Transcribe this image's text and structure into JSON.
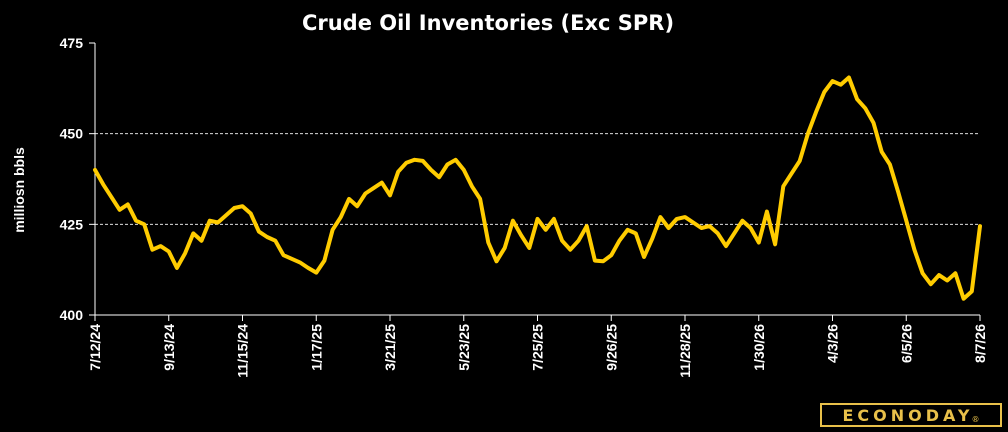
{
  "brand": {
    "name": "ECONODAY",
    "mark": "®"
  },
  "colors": {
    "line": "#ffcc00",
    "background": "#000000",
    "grid": "#ffffff",
    "axis": "#ffffff",
    "brand": "#e8c04a"
  },
  "chart_data": {
    "type": "line",
    "title": "Crude Oil Inventories (Exc SPR)",
    "ylabel": "milliosn bbls",
    "xlabel": "",
    "ylim": [
      400,
      475
    ],
    "yticks": [
      400,
      425,
      450,
      475
    ],
    "grid_y": [
      425,
      450
    ],
    "xlim": [
      "7/12/24",
      "8/7/26"
    ],
    "xticks": [
      "7/12/24",
      "9/13/24",
      "11/15/24",
      "1/17/25",
      "3/21/25",
      "5/23/25",
      "7/25/25",
      "9/26/25",
      "11/28/25",
      "1/30/26",
      "4/3/26",
      "6/5/26",
      "8/7/26"
    ],
    "series": [
      {
        "name": "",
        "x": [
          "7/12/24",
          "7/19/24",
          "7/26/24",
          "8/2/24",
          "8/9/24",
          "8/16/24",
          "8/23/24",
          "8/30/24",
          "9/6/24",
          "9/13/24",
          "9/20/24",
          "9/27/24",
          "10/4/24",
          "10/11/24",
          "10/18/24",
          "10/25/24",
          "11/1/24",
          "11/8/24",
          "11/15/24",
          "11/22/24",
          "11/29/24",
          "12/6/24",
          "12/13/24",
          "12/20/24",
          "12/27/24",
          "1/3/25",
          "1/10/25",
          "1/17/25",
          "1/24/25",
          "1/31/25",
          "2/7/25",
          "2/14/25",
          "2/21/25",
          "2/28/25",
          "3/7/25",
          "3/14/25",
          "3/21/25",
          "3/28/25",
          "4/4/25",
          "4/11/25",
          "4/18/25",
          "4/25/25",
          "5/2/25",
          "5/9/25",
          "5/16/25",
          "5/23/25",
          "5/30/25",
          "6/6/25",
          "6/13/25",
          "6/20/25",
          "6/27/25",
          "7/4/25",
          "7/11/25",
          "7/18/25",
          "7/25/25",
          "8/1/25",
          "8/8/25",
          "8/15/25",
          "8/22/25",
          "8/29/25",
          "9/5/25",
          "9/12/25",
          "9/19/25",
          "9/26/25",
          "10/3/25",
          "10/10/25",
          "10/17/25",
          "10/24/25",
          "10/31/25",
          "11/7/25",
          "11/14/25",
          "11/21/25",
          "11/28/25",
          "12/5/25",
          "12/12/25",
          "12/19/25",
          "12/26/25",
          "1/2/26",
          "1/9/26",
          "1/16/26",
          "1/23/26",
          "1/30/26",
          "2/6/26",
          "2/13/26",
          "2/20/26",
          "2/27/26",
          "3/6/26",
          "3/13/26",
          "3/20/26",
          "3/27/26",
          "4/3/26",
          "4/10/26",
          "4/17/26",
          "4/24/26",
          "5/1/26",
          "5/8/26",
          "5/15/26",
          "5/22/26",
          "5/29/26",
          "6/5/26",
          "6/12/26",
          "6/19/26",
          "6/26/26",
          "7/3/26",
          "7/10/26",
          "7/17/26",
          "7/24/26",
          "7/31/26",
          "8/7/26"
        ],
        "values": [
          440.0,
          436.0,
          432.5,
          429.0,
          430.5,
          426.0,
          425.0,
          418.0,
          419.0,
          417.5,
          413.0,
          417.0,
          422.5,
          420.5,
          426.0,
          425.5,
          427.5,
          429.5,
          430.0,
          428.0,
          423.0,
          421.5,
          420.5,
          416.5,
          415.5,
          414.5,
          413.0,
          411.7,
          415.0,
          423.5,
          427.0,
          432.0,
          430.0,
          433.5,
          435.0,
          436.5,
          433.0,
          439.5,
          442.0,
          442.8,
          442.5,
          440.0,
          438.0,
          441.5,
          442.8,
          440.0,
          435.5,
          432.0,
          420.0,
          414.8,
          418.5,
          426.0,
          422.0,
          418.5,
          426.5,
          423.5,
          426.5,
          420.5,
          418.0,
          420.5,
          424.5,
          415.0,
          414.8,
          416.5,
          420.5,
          423.5,
          422.5,
          416.0,
          421.0,
          427.0,
          424.0,
          426.5,
          427.0,
          425.5,
          424.0,
          424.5,
          422.5,
          419.0,
          422.5,
          426.0,
          424.0,
          420.0,
          428.5,
          419.5,
          435.5,
          439.0,
          442.5,
          450.0,
          456.0,
          461.5,
          464.5,
          463.5,
          465.5,
          459.5,
          457.0,
          453.0,
          445.0,
          441.5,
          434.0,
          426.0,
          418.0,
          411.5,
          408.5,
          411.0,
          409.5,
          411.5,
          404.5,
          406.5,
          424.5
        ]
      }
    ]
  }
}
